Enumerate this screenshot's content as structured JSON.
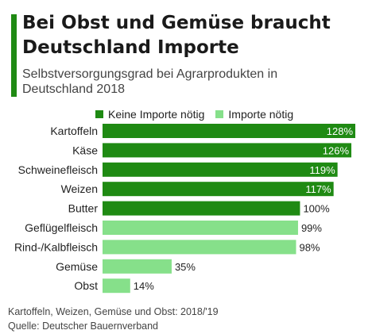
{
  "header": {
    "title": "Bei Obst und Gemüse braucht Deutschland Importe",
    "subtitle": "Selbstversorgungsgrad bei Agrarprodukten in Deutschland 2018"
  },
  "colors": {
    "accent": "#1f8a13",
    "no_imports": "#1f8a13",
    "imports": "#86e08a"
  },
  "chart_data": {
    "type": "bar",
    "orientation": "horizontal",
    "categories": [
      "Kartoffeln",
      "Käse",
      "Schweinefleisch",
      "Weizen",
      "Butter",
      "Geflügelfleisch",
      "Rind-/Kalbfleisch",
      "Gemüse",
      "Obst"
    ],
    "values": [
      128,
      126,
      119,
      117,
      100,
      99,
      98,
      35,
      14
    ],
    "value_labels": [
      "128%",
      "126%",
      "119%",
      "117%",
      "100%",
      "99%",
      "98%",
      "35%",
      "14%"
    ],
    "groups": [
      "Keine Importe nötig",
      "Keine Importe nötig",
      "Keine Importe nötig",
      "Keine Importe nötig",
      "Keine Importe nötig",
      "Importe nötig",
      "Importe nötig",
      "Importe nötig",
      "Importe nötig"
    ],
    "legend": [
      "Keine Importe nötig",
      "Importe nötig"
    ],
    "legend_position": "top",
    "xlim": [
      0,
      128
    ],
    "grid": false
  },
  "footer": {
    "note": "Kartoffeln, Weizen, Gemüse und Obst: 2018/'19",
    "source": "Quelle: Deutscher Bauernverband"
  }
}
